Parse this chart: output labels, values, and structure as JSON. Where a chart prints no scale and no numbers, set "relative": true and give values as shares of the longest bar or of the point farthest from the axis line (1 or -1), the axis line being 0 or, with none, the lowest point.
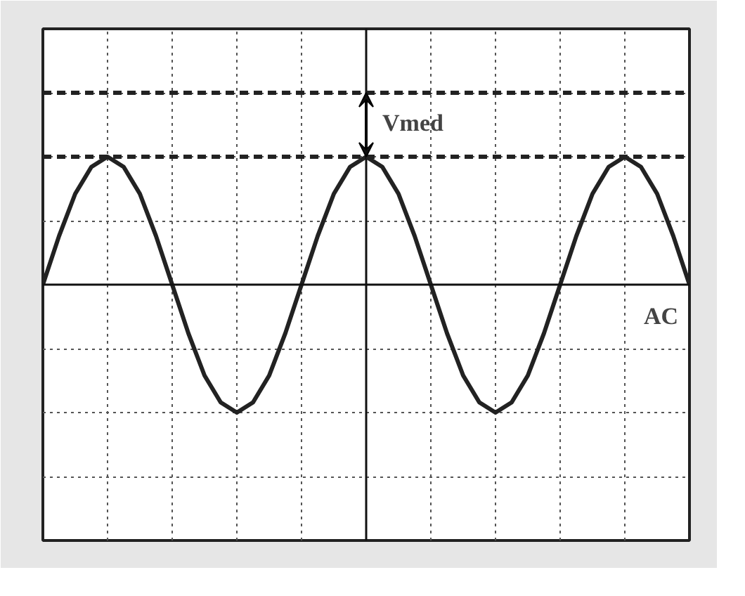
{
  "chart_data": {
    "type": "line",
    "relative": true,
    "grid": true,
    "line_style": "solid",
    "marker": "none",
    "categories": [
      null,
      null,
      null,
      null,
      null,
      null,
      null,
      null,
      null,
      null,
      null,
      null,
      null,
      null,
      null,
      null,
      null,
      null,
      null,
      null,
      null,
      null,
      null,
      null,
      null,
      null,
      null,
      null,
      null,
      null,
      null,
      null,
      null,
      null,
      null,
      null,
      null,
      null,
      null,
      null,
      null
    ],
    "series": [
      {
        "color": "#222222",
        "values": [
          0,
          0.38,
          0.71,
          0.92,
          1,
          0.92,
          0.71,
          0.38,
          0,
          -0.38,
          -0.71,
          -0.92,
          -1,
          -0.92,
          -0.71,
          -0.38,
          0,
          0.38,
          0.71,
          0.92,
          1,
          0.92,
          0.71,
          0.38,
          0,
          -0.38,
          -0.71,
          -0.92,
          -1,
          -0.92,
          -0.71,
          -0.38,
          0,
          0.38,
          0.71,
          0.92,
          1,
          0.92,
          0.71,
          0.38,
          0
        ]
      }
    ],
    "ref_lines": [
      {
        "axis": "y",
        "value": 1,
        "color": "#222222",
        "line_style": "dashed"
      },
      {
        "axis": "y",
        "value": 1.5,
        "color": "#222222",
        "line_style": "dashed"
      }
    ],
    "annotations": [
      "Vmed",
      "AC"
    ]
  }
}
